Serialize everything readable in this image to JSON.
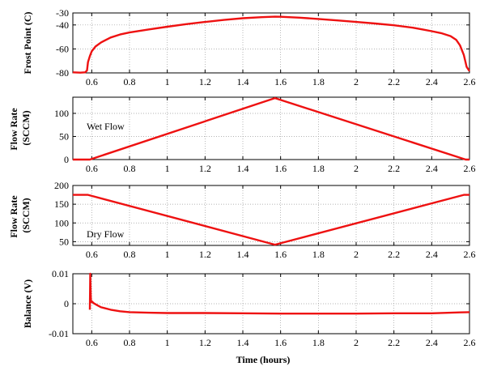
{
  "chart_data": [
    {
      "type": "line",
      "id": "frost",
      "ylabel": "Frost Point (C)",
      "xlim": [
        0.5,
        2.6
      ],
      "ylim": [
        -80,
        -30
      ],
      "x_ticks": [
        "0.6",
        "0.8",
        "1",
        "1.2",
        "1.4",
        "1.6",
        "1.8",
        "2",
        "2.2",
        "2.4",
        "2.6"
      ],
      "y_ticks": [
        {
          "label": "-30",
          "value": -30
        },
        {
          "label": "-40",
          "value": -40
        },
        {
          "label": "-60",
          "value": -60
        },
        {
          "label": "-80",
          "value": -80
        }
      ],
      "annotation": "",
      "color": "#ee1111",
      "series": [
        {
          "x": [
            0.5,
            0.54,
            0.565,
            0.575,
            0.58,
            0.59,
            0.6,
            0.62,
            0.65,
            0.7,
            0.75,
            0.8,
            0.9,
            1.0,
            1.1,
            1.2,
            1.3,
            1.4,
            1.5,
            1.57,
            1.6,
            1.7,
            1.8,
            1.9,
            2.0,
            2.1,
            2.2,
            2.3,
            2.35,
            2.4,
            2.45,
            2.5,
            2.53,
            2.55,
            2.57,
            2.585,
            2.6
          ],
          "y": [
            -79.5,
            -79.8,
            -79.5,
            -78,
            -71,
            -66,
            -62,
            -58,
            -54.5,
            -50.5,
            -48,
            -46.3,
            -43.8,
            -41.5,
            -39.3,
            -37.5,
            -35.8,
            -34.4,
            -33.5,
            -33.1,
            -33.2,
            -33.9,
            -35,
            -36.2,
            -37.5,
            -38.8,
            -40.3,
            -42.3,
            -43.7,
            -45.2,
            -46.8,
            -49.3,
            -52.5,
            -57,
            -65,
            -75,
            -78.5
          ]
        }
      ]
    },
    {
      "type": "line",
      "id": "wet",
      "ylabel": "Flow Rate (SCCM)",
      "xlim": [
        0.5,
        2.6
      ],
      "ylim": [
        0,
        135
      ],
      "x_ticks": [
        "0.6",
        "0.8",
        "1",
        "1.2",
        "1.4",
        "1.6",
        "1.8",
        "2",
        "2.2",
        "2.4",
        "2.6"
      ],
      "y_ticks": [
        {
          "label": "0",
          "value": 0
        },
        {
          "label": "50",
          "value": 50
        },
        {
          "label": "100",
          "value": 100
        }
      ],
      "annotation": "Wet Flow",
      "color": "#ee1111",
      "series": [
        {
          "x": [
            0.5,
            0.59,
            1.57,
            2.58,
            2.6
          ],
          "y": [
            0,
            0,
            133,
            0,
            0
          ]
        }
      ]
    },
    {
      "type": "line",
      "id": "dry",
      "ylabel": "Flow Rate (SCCM)",
      "xlim": [
        0.5,
        2.6
      ],
      "ylim": [
        40,
        200
      ],
      "x_ticks": [
        "0.6",
        "0.8",
        "1",
        "1.2",
        "1.4",
        "1.6",
        "1.8",
        "2",
        "2.2",
        "2.4",
        "2.6"
      ],
      "y_ticks": [
        {
          "label": "50",
          "value": 50
        },
        {
          "label": "100",
          "value": 100
        },
        {
          "label": "150",
          "value": 150
        },
        {
          "label": "200",
          "value": 200
        }
      ],
      "annotation": "Dry Flow",
      "color": "#ee1111",
      "series": [
        {
          "x": [
            0.5,
            0.58,
            1.57,
            2.57,
            2.6
          ],
          "y": [
            175,
            175,
            42,
            175,
            175
          ]
        }
      ]
    },
    {
      "type": "line",
      "id": "balance",
      "ylabel": "Balance (V)",
      "xlabel": "Time (hours)",
      "xlim": [
        0.5,
        2.6
      ],
      "ylim": [
        -0.01,
        0.01
      ],
      "x_ticks": [
        "0.6",
        "0.8",
        "1",
        "1.2",
        "1.4",
        "1.6",
        "1.8",
        "2",
        "2.2",
        "2.4",
        "2.6"
      ],
      "y_ticks": [
        {
          "label": "0.01",
          "value": 0.01
        },
        {
          "label": "0",
          "value": 0
        },
        {
          "label": "-0.01",
          "value": -0.01
        }
      ],
      "annotation": "",
      "color": "#ee1111",
      "series": [
        {
          "x": [
            0.59,
            0.592,
            0.595,
            0.597,
            0.6,
            0.61,
            0.63,
            0.65,
            0.7,
            0.75,
            0.8,
            0.9,
            1.0,
            1.2,
            1.4,
            1.6,
            1.8,
            2.0,
            2.2,
            2.4,
            2.5,
            2.55,
            2.6
          ],
          "y": [
            -0.002,
            0.01,
            0.002,
            0.0005,
            0.0008,
            0.0002,
            -0.0005,
            -0.0012,
            -0.002,
            -0.0025,
            -0.0028,
            -0.003,
            -0.0031,
            -0.0031,
            -0.0032,
            -0.0033,
            -0.0033,
            -0.0033,
            -0.0032,
            -0.0032,
            -0.003,
            -0.0029,
            -0.0028
          ]
        }
      ]
    }
  ]
}
